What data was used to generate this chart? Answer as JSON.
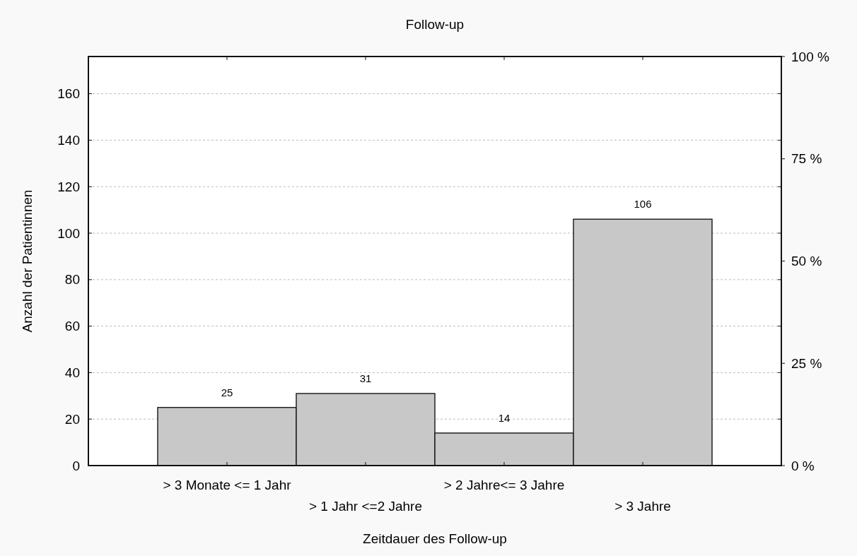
{
  "chart_data": {
    "type": "bar",
    "title": "Follow-up",
    "xlabel": "Zeitdauer des Follow-up",
    "ylabel": "Anzahl der Patientinnen",
    "categories": [
      "> 3 Monate <= 1 Jahr",
      "> 1 Jahr <=2 Jahre",
      "> 2 Jahre<= 3 Jahre",
      "> 3 Jahre"
    ],
    "series": [
      {
        "color": "#c8c8c8",
        "values": [
          25,
          31,
          14,
          106
        ]
      }
    ],
    "ylim": [
      0,
      176
    ],
    "yticks": [
      0,
      20,
      40,
      60,
      80,
      100,
      120,
      140,
      160
    ],
    "y2lim": [
      0,
      100
    ],
    "y2ticks": [
      {
        "value": 0,
        "label": "0 %"
      },
      {
        "value": 25,
        "label": "25 %"
      },
      {
        "value": 50,
        "label": "50 %"
      },
      {
        "value": 75,
        "label": "75 %"
      },
      {
        "value": 100,
        "label": "100 %"
      }
    ],
    "grid": "y",
    "data_labels": true
  }
}
